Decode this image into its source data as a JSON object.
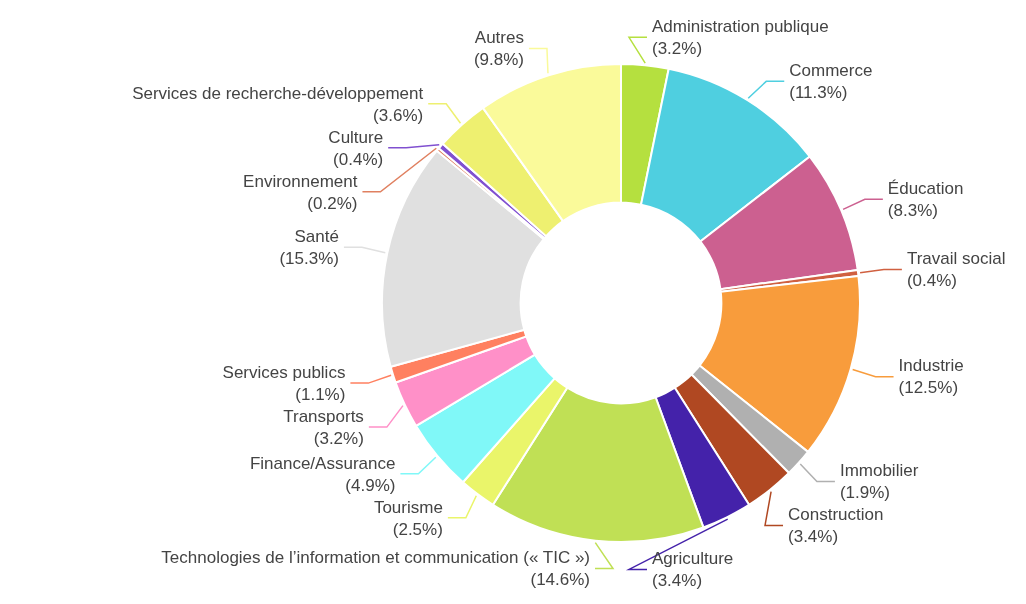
{
  "chart_data": {
    "type": "donut",
    "categories": [
      "Administration publique",
      "Commerce",
      "Éducation",
      "Travail social",
      "Industrie",
      "Immobilier",
      "Construction",
      "Agriculture",
      "Technologies de l’information et communication (« TIC »)",
      "Tourisme",
      "Finance/Assurance",
      "Transports",
      "Services publics",
      "Santé",
      "Environnement",
      "Culture",
      "Services de recherche-développement",
      "Autres"
    ],
    "values": [
      3.2,
      11.3,
      8.3,
      0.4,
      12.5,
      1.9,
      3.4,
      3.4,
      14.6,
      2.5,
      4.9,
      3.2,
      1.1,
      15.3,
      0.2,
      0.4,
      3.6,
      9.8
    ],
    "value_labels": [
      "(3.2%)",
      "(11.3%)",
      "(8.3%)",
      "(0.4%)",
      "(12.5%)",
      "(1.9%)",
      "(3.4%)",
      "(3.4%)",
      "(14.6%)",
      "(2.5%)",
      "(4.9%)",
      "(3.2%)",
      "(1.1%)",
      "(15.3%)",
      "(0.2%)",
      "(0.4%)",
      "(3.6%)",
      "(9.8%)"
    ],
    "colors": [
      "#b5e03f",
      "#4fcfe0",
      "#cc6090",
      "#d06040",
      "#f89c3c",
      "#b0b0b0",
      "#b04822",
      "#4422aa",
      "#c0e055",
      "#eaf56a",
      "#80f8f8",
      "#ff90c8",
      "#ff8060",
      "#e0e0e0",
      "#e08060",
      "#8050d0",
      "#eef070",
      "#fafa9a"
    ],
    "legend": false
  }
}
